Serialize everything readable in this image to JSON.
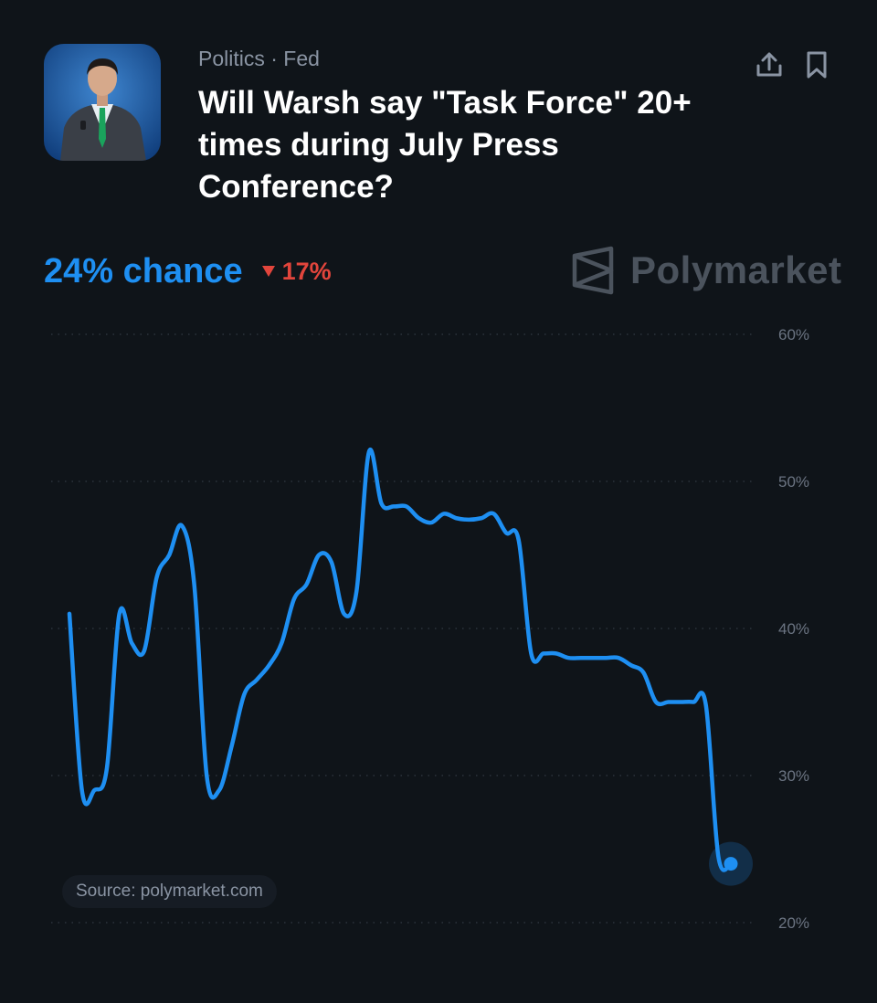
{
  "header": {
    "category": "Politics · Fed",
    "title": "Will Warsh say \"Task Force\" 20+ times during July Press Conference?",
    "share_icon": "share-icon",
    "bookmark_icon": "bookmark-icon",
    "avatar": "speaker-photo"
  },
  "summary": {
    "chance": "24% chance",
    "change": "17%",
    "change_direction": "down",
    "change_icon": "triangle-down-icon"
  },
  "brand": {
    "name": "Polymarket",
    "logo_icon": "polymarket-logo-icon"
  },
  "source_label": "Source: polymarket.com",
  "colors": {
    "background": "#0f1419",
    "line": "#1e8ff2",
    "negative": "#e2453c",
    "muted": "#8a94a3"
  },
  "chart_data": {
    "type": "line",
    "series": [
      {
        "values": [
          41,
          29,
          29,
          30.5,
          41,
          39,
          38.5,
          43.5,
          45,
          47,
          43,
          30,
          29,
          32,
          35.5,
          36.5,
          37.5,
          39,
          42,
          43,
          45,
          44.5,
          41,
          42.5,
          52,
          48.5,
          48.3,
          48.3,
          47.5,
          47.2,
          47.8,
          47.5,
          47.4,
          47.5,
          47.8,
          46.5,
          46,
          38.3,
          38.3,
          38.3,
          38,
          38,
          38,
          38,
          38,
          37.5,
          37,
          35,
          35,
          35,
          35,
          34.8,
          24.5,
          24
        ]
      }
    ],
    "yticks": [
      "60%",
      "50%",
      "40%",
      "30%",
      "20%"
    ],
    "ylim": [
      20,
      60
    ],
    "grid": true,
    "last_value": 24
  }
}
